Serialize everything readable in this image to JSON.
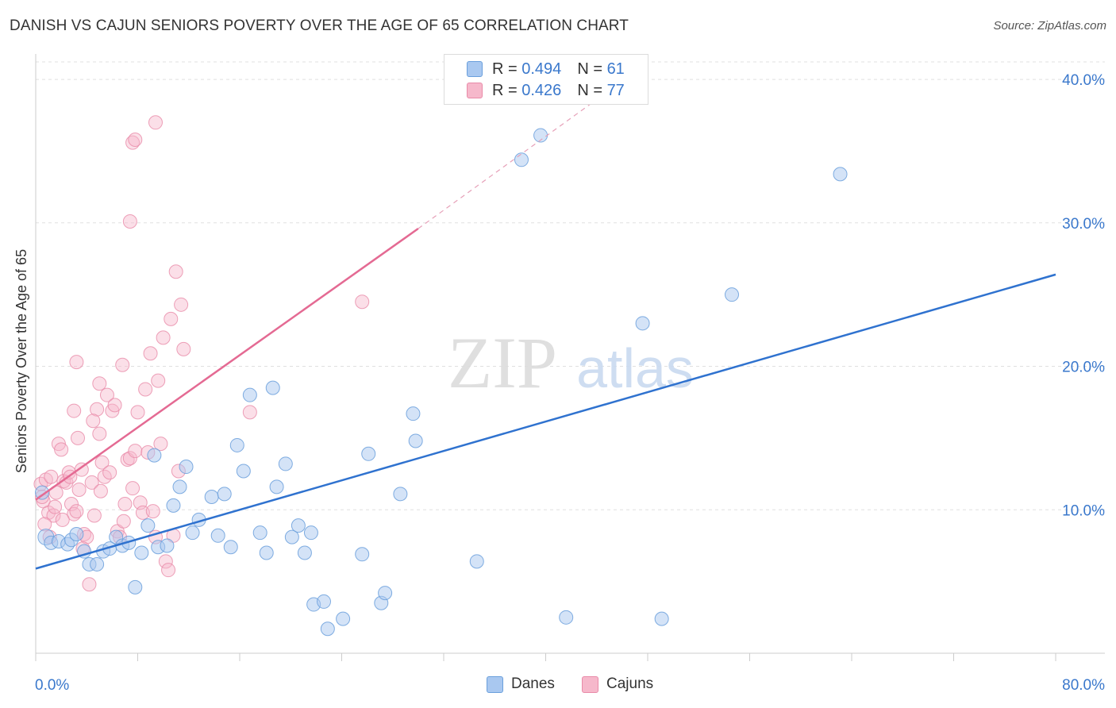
{
  "title": "DANISH VS CAJUN SENIORS POVERTY OVER THE AGE OF 65 CORRELATION CHART",
  "source": "Source: ZipAtlas.com",
  "watermark": {
    "zip": "ZIP",
    "atlas": "atlas"
  },
  "legend": {
    "r_label": "R =",
    "n_label": "N =",
    "rows": [
      {
        "r": "0.494",
        "n": "61"
      },
      {
        "r": "0.426",
        "n": "77"
      }
    ]
  },
  "colors": {
    "danes_fill": "#a9c8f0",
    "danes_stroke": "#6a9fdc",
    "danes_line": "#2f72cf",
    "cajuns_fill": "#f6b8cb",
    "cajuns_stroke": "#e98aa8",
    "cajuns_line": "#e46a93",
    "tick_label": "#3a78cc",
    "grid": "#e0e0e0"
  },
  "chart_data": {
    "type": "scatter",
    "title": "DANISH VS CAJUN SENIORS POVERTY OVER THE AGE OF 65 CORRELATION CHART",
    "xlabel": "",
    "ylabel": "Seniors Poverty Over the Age of 65",
    "xlim": [
      0,
      80
    ],
    "ylim": [
      0,
      41
    ],
    "x_tick_labels": [
      "0.0%",
      "80.0%"
    ],
    "y_ticks": [
      10,
      20,
      30,
      40
    ],
    "y_tick_labels": [
      "10.0%",
      "20.0%",
      "30.0%",
      "40.0%"
    ],
    "grid": "horizontal dashed",
    "legend_position": "top-center and bottom",
    "series": [
      {
        "name": "Danes",
        "r": 0.494,
        "n": 61,
        "trend": {
          "x": [
            0,
            80
          ],
          "y": [
            5.9,
            26.4
          ]
        },
        "points": [
          [
            0.8,
            8.1
          ],
          [
            1.2,
            7.7
          ],
          [
            1.8,
            7.8
          ],
          [
            2.5,
            7.6
          ],
          [
            2.8,
            7.9
          ],
          [
            3.2,
            8.3
          ],
          [
            3.8,
            7.1
          ],
          [
            4.2,
            6.2
          ],
          [
            4.8,
            6.2
          ],
          [
            5.3,
            7.1
          ],
          [
            5.8,
            7.3
          ],
          [
            6.3,
            8.1
          ],
          [
            6.8,
            7.5
          ],
          [
            7.3,
            7.7
          ],
          [
            7.8,
            4.6
          ],
          [
            8.3,
            7.0
          ],
          [
            8.8,
            8.9
          ],
          [
            9.3,
            13.8
          ],
          [
            9.6,
            7.4
          ],
          [
            10.3,
            7.5
          ],
          [
            10.8,
            10.3
          ],
          [
            11.3,
            11.6
          ],
          [
            11.8,
            13.0
          ],
          [
            12.3,
            8.4
          ],
          [
            12.8,
            9.3
          ],
          [
            13.8,
            10.9
          ],
          [
            14.3,
            8.2
          ],
          [
            14.8,
            11.1
          ],
          [
            15.3,
            7.4
          ],
          [
            15.8,
            14.5
          ],
          [
            16.3,
            12.7
          ],
          [
            16.8,
            18.0
          ],
          [
            17.6,
            8.4
          ],
          [
            18.1,
            7.0
          ],
          [
            18.6,
            18.5
          ],
          [
            18.9,
            11.6
          ],
          [
            19.6,
            13.2
          ],
          [
            20.1,
            8.1
          ],
          [
            20.6,
            8.9
          ],
          [
            21.1,
            7.0
          ],
          [
            21.6,
            8.4
          ],
          [
            21.8,
            3.4
          ],
          [
            22.6,
            3.6
          ],
          [
            22.9,
            1.7
          ],
          [
            24.1,
            2.4
          ],
          [
            25.6,
            6.9
          ],
          [
            26.1,
            13.9
          ],
          [
            27.1,
            3.5
          ],
          [
            27.4,
            4.2
          ],
          [
            28.6,
            11.1
          ],
          [
            29.6,
            16.7
          ],
          [
            29.8,
            14.8
          ],
          [
            34.6,
            6.4
          ],
          [
            38.1,
            34.4
          ],
          [
            39.6,
            36.1
          ],
          [
            41.6,
            2.5
          ],
          [
            47.6,
            23.0
          ],
          [
            49.1,
            2.4
          ],
          [
            54.6,
            25.0
          ],
          [
            63.1,
            33.4
          ],
          [
            0.5,
            11.2
          ]
        ]
      },
      {
        "name": "Cajuns",
        "r": 0.426,
        "n": 77,
        "trend": {
          "x": [
            0,
            30
          ],
          "y": [
            10.7,
            29.6
          ]
        },
        "trend_extension": {
          "x": [
            30,
            44
          ],
          "y": [
            29.6,
            38.6
          ]
        },
        "points": [
          [
            0.4,
            11.8
          ],
          [
            0.6,
            10.6
          ],
          [
            0.8,
            12.1
          ],
          [
            1.0,
            9.8
          ],
          [
            1.2,
            12.3
          ],
          [
            1.4,
            9.6
          ],
          [
            1.6,
            11.2
          ],
          [
            1.8,
            14.6
          ],
          [
            2.0,
            14.2
          ],
          [
            2.2,
            12.0
          ],
          [
            2.4,
            11.9
          ],
          [
            2.6,
            12.6
          ],
          [
            2.8,
            10.4
          ],
          [
            3.0,
            9.7
          ],
          [
            3.2,
            9.9
          ],
          [
            3.4,
            11.4
          ],
          [
            3.6,
            12.8
          ],
          [
            3.8,
            8.3
          ],
          [
            4.0,
            8.1
          ],
          [
            4.2,
            4.8
          ],
          [
            4.4,
            11.9
          ],
          [
            4.6,
            9.6
          ],
          [
            4.8,
            17.0
          ],
          [
            5.0,
            18.8
          ],
          [
            5.2,
            13.3
          ],
          [
            5.4,
            12.3
          ],
          [
            5.6,
            18.0
          ],
          [
            5.8,
            12.6
          ],
          [
            6.0,
            16.9
          ],
          [
            6.2,
            17.3
          ],
          [
            6.4,
            8.5
          ],
          [
            6.6,
            8.1
          ],
          [
            6.8,
            20.1
          ],
          [
            7.0,
            10.4
          ],
          [
            7.2,
            13.5
          ],
          [
            7.4,
            13.6
          ],
          [
            7.6,
            11.5
          ],
          [
            7.8,
            14.1
          ],
          [
            8.0,
            16.8
          ],
          [
            8.2,
            10.5
          ],
          [
            8.4,
            9.8
          ],
          [
            8.6,
            18.4
          ],
          [
            8.8,
            14.0
          ],
          [
            9.0,
            20.9
          ],
          [
            9.2,
            9.9
          ],
          [
            9.4,
            8.1
          ],
          [
            9.6,
            19.0
          ],
          [
            9.8,
            14.6
          ],
          [
            10.0,
            22.0
          ],
          [
            10.2,
            6.4
          ],
          [
            10.4,
            5.8
          ],
          [
            10.6,
            23.3
          ],
          [
            10.8,
            8.2
          ],
          [
            11.0,
            26.6
          ],
          [
            11.2,
            12.7
          ],
          [
            11.4,
            24.3
          ],
          [
            11.6,
            21.2
          ],
          [
            5.0,
            15.3
          ],
          [
            3.0,
            16.9
          ],
          [
            3.2,
            20.3
          ],
          [
            7.6,
            35.6
          ],
          [
            7.8,
            35.8
          ],
          [
            9.4,
            37.0
          ],
          [
            7.4,
            30.1
          ],
          [
            16.8,
            16.8
          ],
          [
            25.6,
            24.5
          ],
          [
            0.5,
            10.9
          ],
          [
            1.1,
            8.1
          ],
          [
            1.5,
            10.2
          ],
          [
            2.1,
            9.3
          ],
          [
            2.7,
            12.3
          ],
          [
            3.3,
            15.0
          ],
          [
            4.5,
            16.2
          ],
          [
            5.1,
            11.3
          ],
          [
            6.9,
            9.2
          ],
          [
            3.7,
            7.3
          ],
          [
            0.7,
            9.0
          ]
        ]
      }
    ]
  },
  "bottom_legend": [
    "Danes",
    "Cajuns"
  ]
}
